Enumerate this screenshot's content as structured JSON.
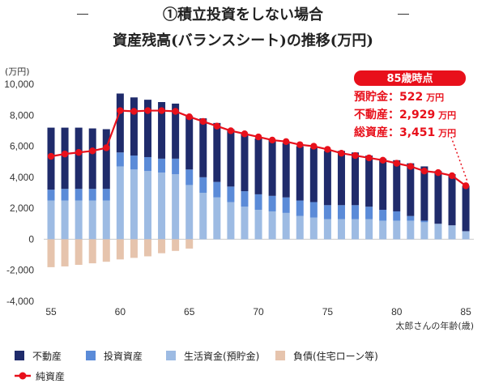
{
  "header": {
    "title": "①積立投資をしない場合",
    "subtitle": "資産残高(バランスシート)の推移(万円)"
  },
  "chart_data": {
    "type": "bar",
    "stacked": true,
    "unit_label": "(万円)",
    "xlabel": "太郎さんの年齢(歳)",
    "ylabel": "",
    "ylim": [
      -4000,
      10000
    ],
    "yticks": [
      -4000,
      -2000,
      0,
      2000,
      4000,
      6000,
      8000,
      10000
    ],
    "ytick_labels": [
      "-4,000",
      "-2,000",
      "0",
      "2,000",
      "4,000",
      "6,000",
      "8,000",
      "10,000"
    ],
    "xticks": [
      55,
      60,
      65,
      70,
      75,
      80,
      85
    ],
    "x": [
      55,
      56,
      57,
      58,
      59,
      60,
      61,
      62,
      63,
      64,
      65,
      66,
      67,
      68,
      69,
      70,
      71,
      72,
      73,
      74,
      75,
      76,
      77,
      78,
      79,
      80,
      81,
      82,
      83,
      84,
      85
    ],
    "series": [
      {
        "name": "生活資金(預貯金)",
        "color": "#9dbbe3",
        "values": [
          2500,
          2500,
          2500,
          2500,
          2500,
          4700,
          4500,
          4400,
          4300,
          4200,
          3500,
          3000,
          2700,
          2400,
          2100,
          1900,
          1800,
          1700,
          1500,
          1400,
          1300,
          1300,
          1300,
          1300,
          1200,
          1200,
          1200,
          1100,
          1000,
          900,
          522
        ]
      },
      {
        "name": "投資資産",
        "color": "#5b8bd8",
        "values": [
          700,
          750,
          750,
          750,
          750,
          900,
          900,
          900,
          900,
          1000,
          1000,
          1000,
          1000,
          1000,
          1000,
          1000,
          1000,
          1000,
          1000,
          1000,
          900,
          900,
          900,
          800,
          700,
          600,
          300,
          100,
          0,
          0,
          0
        ]
      },
      {
        "name": "不動産",
        "color": "#1f2b6b",
        "values": [
          4000,
          3950,
          3950,
          3900,
          3850,
          3800,
          3750,
          3700,
          3650,
          3550,
          3450,
          3800,
          3800,
          3700,
          3700,
          3600,
          3600,
          3500,
          3500,
          3500,
          3500,
          3500,
          3400,
          3300,
          3300,
          3300,
          3400,
          3500,
          3400,
          3300,
          2929
        ]
      },
      {
        "name": "負債(住宅ローン等)",
        "color": "#e6c4ad",
        "values": [
          -1800,
          -1750,
          -1650,
          -1550,
          -1450,
          -1300,
          -1200,
          -1100,
          -900,
          -750,
          -600,
          0,
          0,
          0,
          0,
          0,
          0,
          0,
          0,
          0,
          0,
          0,
          0,
          0,
          0,
          0,
          0,
          0,
          0,
          0,
          0
        ]
      }
    ],
    "line": {
      "name": "純資産",
      "color": "#e8101b",
      "values": [
        5350,
        5500,
        5600,
        5700,
        5900,
        8300,
        8250,
        8300,
        8300,
        8250,
        7900,
        7600,
        7300,
        7000,
        6800,
        6600,
        6400,
        6300,
        6100,
        6000,
        5800,
        5550,
        5400,
        5250,
        5100,
        4900,
        4700,
        4400,
        4300,
        4100,
        3451
      ]
    },
    "annotation": {
      "badge": "85歳時点",
      "lines": [
        {
          "label": "預貯金：",
          "value": "522",
          "unit": "万円"
        },
        {
          "label": "不動産：",
          "value": "2,929",
          "unit": "万円"
        },
        {
          "label": "総資産：",
          "value": "3,451",
          "unit": "万円"
        }
      ]
    },
    "legend": [
      {
        "label": "不動産",
        "color": "#1f2b6b",
        "kind": "box"
      },
      {
        "label": "投資資産",
        "color": "#5b8bd8",
        "kind": "box"
      },
      {
        "label": "生活資金(預貯金)",
        "color": "#9dbbe3",
        "kind": "box"
      },
      {
        "label": "負債(住宅ローン等)",
        "color": "#e6c4ad",
        "kind": "box"
      },
      {
        "label": "純資産",
        "color": "#e8101b",
        "kind": "line"
      }
    ]
  }
}
